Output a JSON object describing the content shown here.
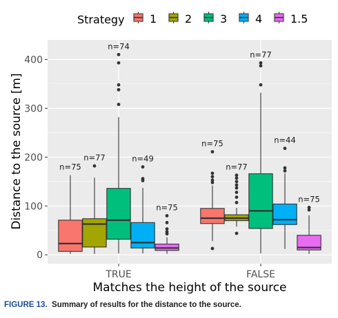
{
  "chart_data": {
    "type": "boxplot",
    "title": "",
    "xlabel": "Matches the height of the source",
    "ylabel": "Distance to the source [m]",
    "ylim": [
      -18,
      440
    ],
    "yticks": [
      0,
      100,
      200,
      300,
      400
    ],
    "categories": [
      "TRUE",
      "FALSE"
    ],
    "grid": true,
    "legend": {
      "title": "Strategy",
      "position": "top",
      "entries": [
        {
          "label": "1",
          "color": "#F8766D"
        },
        {
          "label": "2",
          "color": "#A3A500"
        },
        {
          "label": "3",
          "color": "#00BF7D"
        },
        {
          "label": "4",
          "color": "#00B0F6"
        },
        {
          "label": "1.5",
          "color": "#E76BF3"
        }
      ]
    },
    "groups": [
      {
        "category": "TRUE",
        "boxes": [
          {
            "strategy": "1",
            "whisker_low": 2,
            "q1": 7,
            "median": 23,
            "q3": 71,
            "whisker_high": 163,
            "outliers": [],
            "annotation": "n=75"
          },
          {
            "strategy": "2",
            "whisker_low": 2,
            "q1": 16,
            "median": 63,
            "q3": 74,
            "whisker_high": 158,
            "outliers": [
              182
            ],
            "annotation": "n=77"
          },
          {
            "strategy": "3",
            "whisker_low": 3,
            "q1": 32,
            "median": 71,
            "q3": 136,
            "whisker_high": 282,
            "outliers": [
              308,
              338,
              348,
              393,
              410
            ],
            "annotation": "n=74"
          },
          {
            "strategy": "4",
            "whisker_low": 3,
            "q1": 14,
            "median": 25,
            "q3": 66,
            "whisker_high": 137,
            "outliers": [
              152,
              156,
              180
            ],
            "annotation": "n=49"
          },
          {
            "strategy": "1.5",
            "whisker_low": 2,
            "q1": 9,
            "median": 14,
            "q3": 22,
            "whisker_high": 36,
            "outliers": [
              43,
              47,
              53,
              66,
              80
            ],
            "annotation": "n=75"
          }
        ]
      },
      {
        "category": "FALSE",
        "boxes": [
          {
            "strategy": "1",
            "whisker_low": 28,
            "q1": 64,
            "median": 75,
            "q3": 95,
            "whisker_high": 142,
            "outliers": [
              13,
              148,
              153,
              160,
              167,
              211
            ],
            "annotation": "n=75"
          },
          {
            "strategy": "2",
            "whisker_low": 58,
            "q1": 70,
            "median": 75,
            "q3": 82,
            "whisker_high": 96,
            "outliers": [
              44,
              107,
              118,
              128,
              137,
              143,
              150,
              157,
              163
            ],
            "annotation": "n=77"
          },
          {
            "strategy": "3",
            "whisker_low": 3,
            "q1": 54,
            "median": 90,
            "q3": 166,
            "whisker_high": 332,
            "outliers": [
              348,
              387,
              393
            ],
            "annotation": "n=77"
          },
          {
            "strategy": "4",
            "whisker_low": 12,
            "q1": 62,
            "median": 72,
            "q3": 104,
            "whisker_high": 167,
            "outliers": [
              172,
              178,
              218
            ],
            "annotation": "n=44"
          },
          {
            "strategy": "1.5",
            "whisker_low": 2,
            "q1": 10,
            "median": 15,
            "q3": 40,
            "whisker_high": 81,
            "outliers": [
              92,
              97
            ],
            "annotation": "n=75"
          }
        ]
      }
    ]
  },
  "caption": {
    "label": "FIGURE 13.",
    "text": "Summary of results for the distance to the source."
  }
}
